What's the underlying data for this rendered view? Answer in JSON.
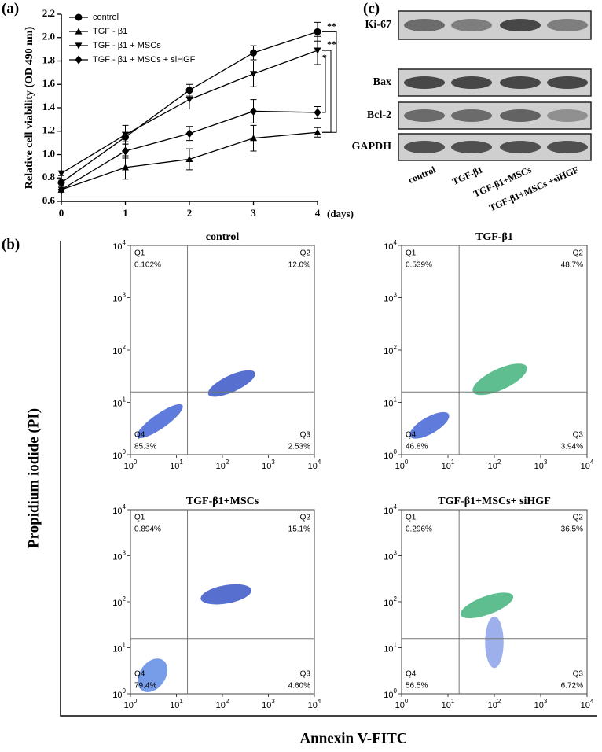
{
  "chart_data": {
    "type": "line",
    "panel_label": "(a)",
    "y_label": "Relative cell viability (OD 490 nm)",
    "x_label": "(days)",
    "x": [
      0,
      1,
      2,
      3,
      4
    ],
    "xlim": [
      0,
      4
    ],
    "xticks": [
      0,
      1,
      2,
      3,
      4
    ],
    "ylim": [
      0.6,
      2.2
    ],
    "yticks": [
      0.6,
      0.8,
      {
        "value": 1,
        "label": "1.0"
      },
      1.2,
      1.4,
      1.6,
      1.8,
      {
        "value": 2,
        "label": "2.0"
      },
      2.2
    ],
    "series": [
      {
        "name": "control",
        "marker": "circle",
        "color": "#000000",
        "values": [
          0.76,
          1.15,
          1.55,
          1.87,
          2.05
        ],
        "errors": [
          0.03,
          0.04,
          0.05,
          0.06,
          0.08
        ]
      },
      {
        "name": "TGF - β1",
        "marker": "triangle-up",
        "color": "#000000",
        "values": [
          0.7,
          0.89,
          0.96,
          1.14,
          1.19
        ],
        "errors": [
          0.02,
          0.1,
          0.09,
          0.11,
          0.04
        ]
      },
      {
        "name": "TGF - β1 + MSCs",
        "marker": "triangle-down",
        "color": "#000000",
        "values": [
          0.84,
          1.17,
          1.47,
          1.69,
          1.89
        ],
        "errors": [
          0.02,
          0.08,
          0.08,
          0.11,
          0.12
        ]
      },
      {
        "name": "TGF - β1 + MSCs + siHGF",
        "marker": "diamond",
        "color": "#000000",
        "values": [
          0.7,
          1.03,
          1.18,
          1.37,
          1.36
        ],
        "errors": [
          0.02,
          0.06,
          0.06,
          0.1,
          0.05
        ]
      }
    ],
    "annotations": [
      "**",
      "**",
      "*"
    ]
  },
  "western_blot": {
    "panel_label": "(c)",
    "proteins": [
      "Ki-67",
      "Bax",
      "Bcl-2",
      "GAPDH"
    ],
    "lanes": [
      "control",
      "TGF-β1",
      "TGF-β1+MSCs",
      "TGF-β1+MSCs +siHGF"
    ]
  },
  "flow_cytometry": {
    "panel_label": "(b)",
    "y_label": "Propidium iodide (PI)",
    "x_label": "Annexin V-FITC",
    "tick_base": "10",
    "tick_exponents": [
      "0",
      "1",
      "2",
      "3",
      "4"
    ],
    "plots": [
      {
        "title": "control",
        "quadrants": [
          {
            "name": "Q1",
            "percent": "0.102%"
          },
          {
            "name": "Q2",
            "percent": "12.0%"
          },
          {
            "name": "Q3",
            "percent": "2.53%"
          },
          {
            "name": "Q4",
            "percent": "85.3%"
          }
        ]
      },
      {
        "title": "TGF-β1",
        "quadrants": [
          {
            "name": "Q1",
            "percent": "0.539%"
          },
          {
            "name": "Q2",
            "percent": "48.7%"
          },
          {
            "name": "Q3",
            "percent": "3.94%"
          },
          {
            "name": "Q4",
            "percent": "46.8%"
          }
        ]
      },
      {
        "title": "TGF-β1+MSCs",
        "quadrants": [
          {
            "name": "Q1",
            "percent": "0.894%"
          },
          {
            "name": "Q2",
            "percent": "15.1%"
          },
          {
            "name": "Q3",
            "percent": "4.60%"
          },
          {
            "name": "Q4",
            "percent": "79.4%"
          }
        ]
      },
      {
        "title": "TGF-β1+MSCs+ siHGF",
        "quadrants": [
          {
            "name": "Q1",
            "percent": "0.296%"
          },
          {
            "name": "Q2",
            "percent": "36.5%"
          },
          {
            "name": "Q3",
            "percent": "6.72%"
          },
          {
            "name": "Q4",
            "percent": "56.5%"
          }
        ]
      }
    ]
  }
}
